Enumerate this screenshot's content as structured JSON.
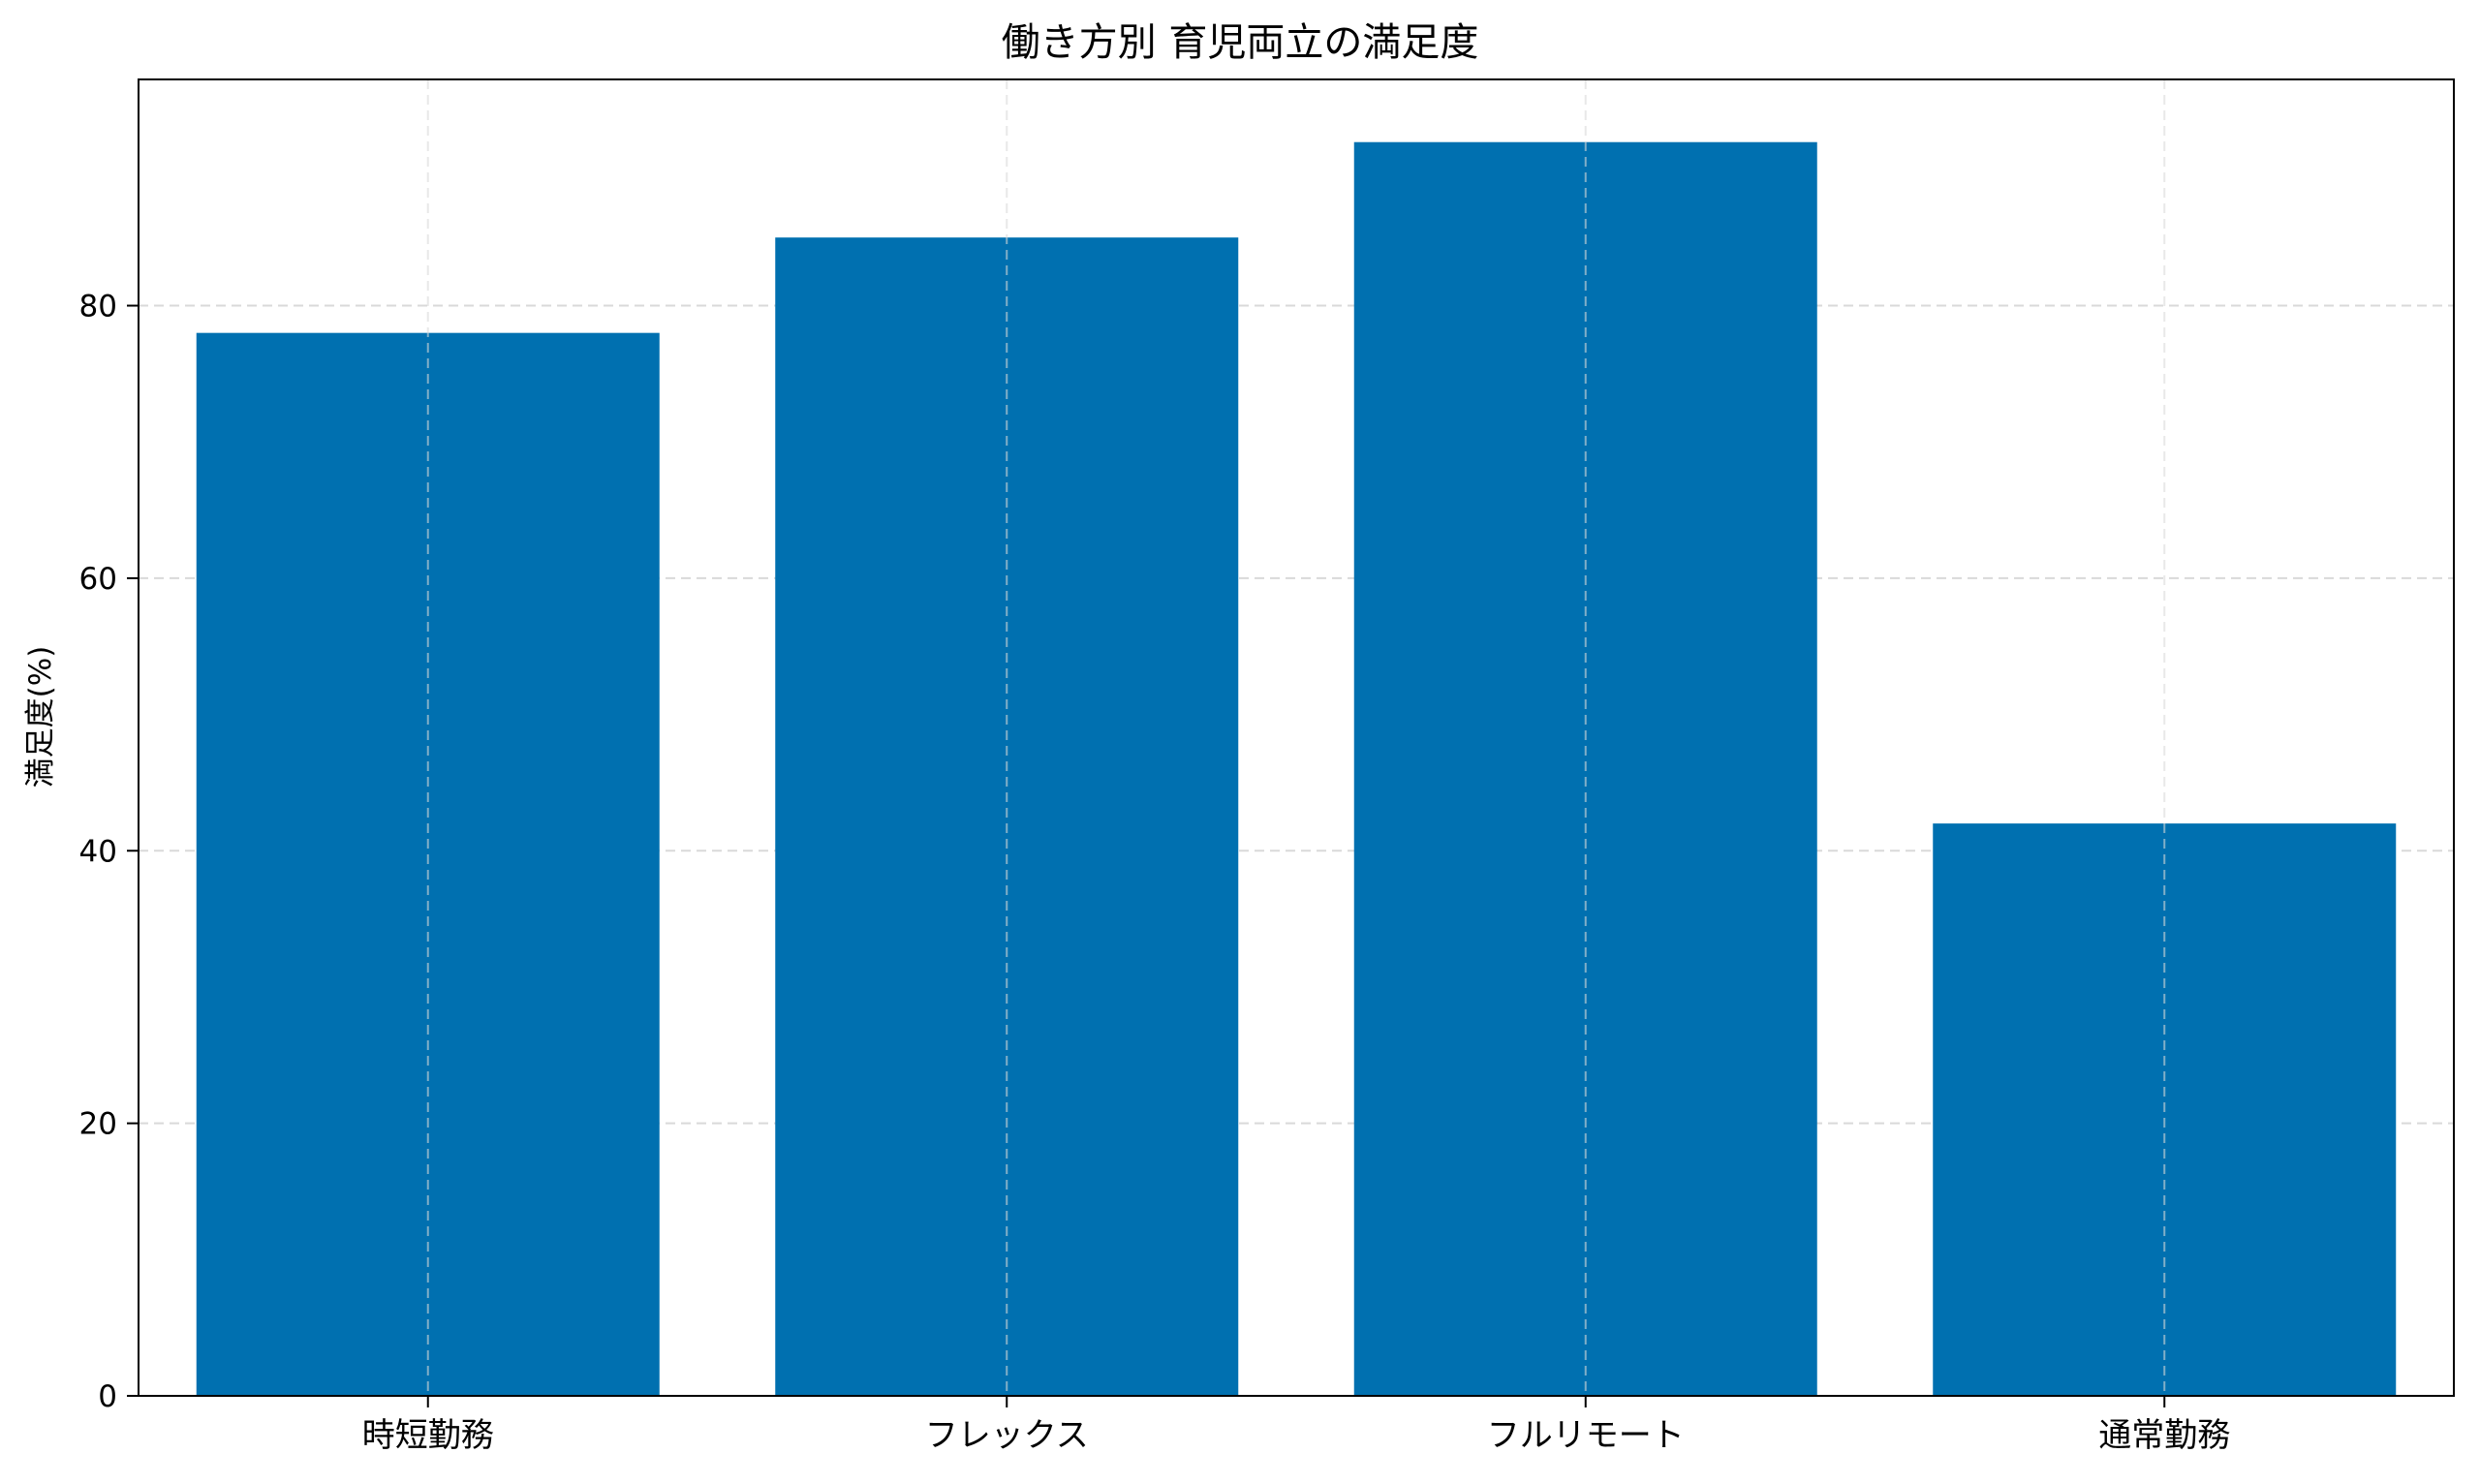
{
  "chart_data": {
    "type": "bar",
    "title": "働き方別 育児両立の満足度",
    "xlabel": "",
    "ylabel": "満足度(%)",
    "categories": [
      "時短勤務",
      "フレックス",
      "フルリモート",
      "通常勤務"
    ],
    "values": [
      78,
      85,
      92,
      42
    ],
    "ylim": [
      0,
      96.6
    ],
    "yticks": [
      0,
      20,
      40,
      60,
      80
    ],
    "bar_color": "#0070b0",
    "grid": true,
    "grid_color": "#d9d9d9",
    "legend": "none"
  }
}
